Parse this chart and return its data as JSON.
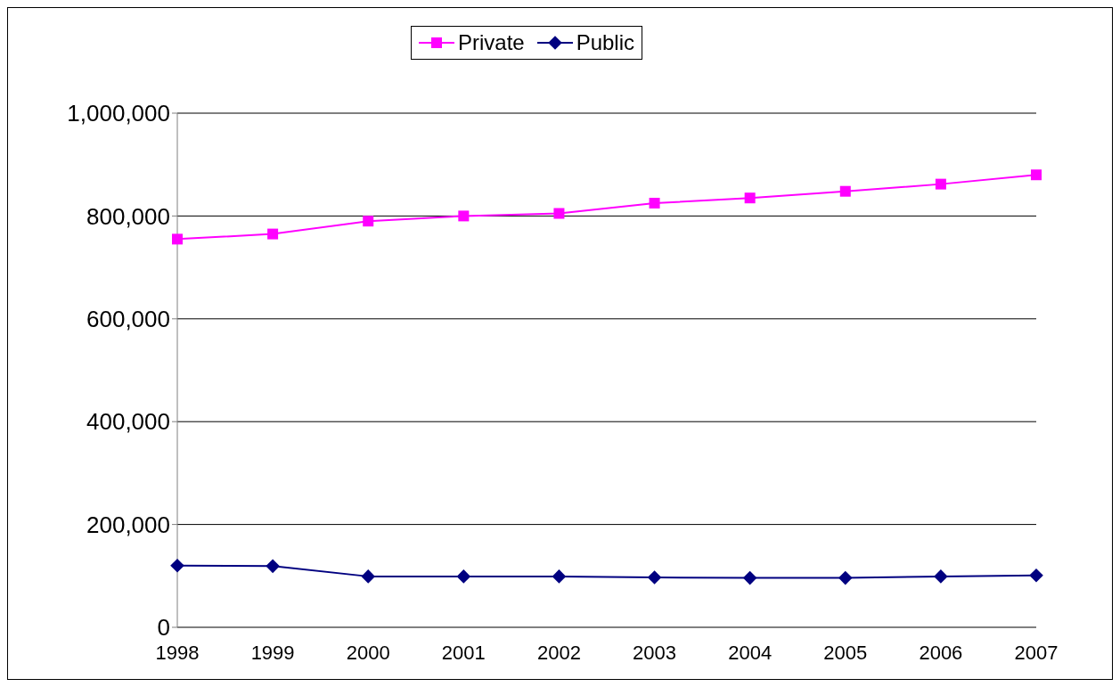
{
  "chart_data": {
    "type": "line",
    "categories": [
      "1998",
      "1999",
      "2000",
      "2001",
      "2002",
      "2003",
      "2004",
      "2005",
      "2006",
      "2007"
    ],
    "series": [
      {
        "name": "Private",
        "color": "#ff00ff",
        "marker": "square",
        "values": [
          755000,
          765000,
          790000,
          800000,
          805000,
          825000,
          835000,
          848000,
          862000,
          880000
        ]
      },
      {
        "name": "Public",
        "color": "#000080",
        "marker": "diamond",
        "values": [
          120000,
          119000,
          99000,
          99000,
          99000,
          97000,
          96000,
          96000,
          99000,
          101000
        ]
      }
    ],
    "ylim": [
      0,
      1000000
    ],
    "yticks": [
      0,
      {
        "value": 200000,
        "label": "200,000"
      },
      {
        "value": 400000,
        "label": "400,000"
      },
      {
        "value": 600000,
        "label": "600,000"
      },
      {
        "value": 800000,
        "label": "800,000"
      },
      {
        "value": 1000000,
        "label": "1,000,000"
      }
    ],
    "grid": "y",
    "legend": "top"
  }
}
